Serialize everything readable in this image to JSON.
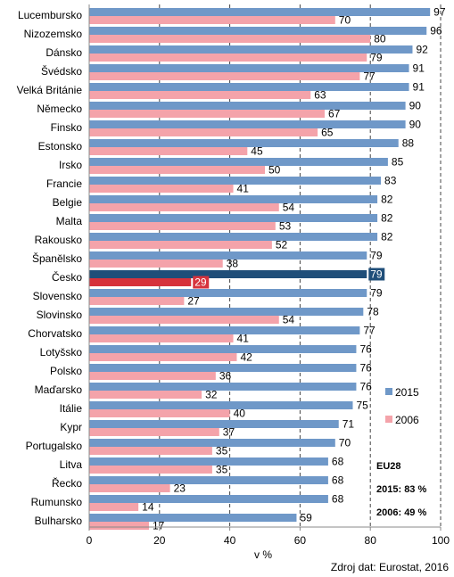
{
  "chart_data": {
    "type": "bar",
    "orientation": "horizontal",
    "categories": [
      "Lucembursko",
      "Nizozemsko",
      "Dánsko",
      "Švédsko",
      "Velká Británie",
      "Německo",
      "Finsko",
      "Estonsko",
      "Irsko",
      "Francie",
      "Belgie",
      "Malta",
      "Rakousko",
      "Španělsko",
      "Česko",
      "Slovensko",
      "Slovinsko",
      "Chorvatsko",
      "Lotyšsko",
      "Polsko",
      "Maďarsko",
      "Itálie",
      "Kypr",
      "Portugalsko",
      "Litva",
      "Řecko",
      "Rumunsko",
      "Bulharsko"
    ],
    "series": [
      {
        "name": "2015",
        "values": [
          97,
          96,
          92,
          91,
          91,
          90,
          90,
          88,
          85,
          83,
          82,
          82,
          82,
          79,
          79,
          79,
          78,
          77,
          76,
          76,
          76,
          75,
          71,
          70,
          68,
          68,
          68,
          59
        ],
        "color": "#6f98c8",
        "highlight_color": "#1f4e79"
      },
      {
        "name": "2006",
        "values": [
          70,
          80,
          79,
          77,
          63,
          67,
          65,
          45,
          50,
          41,
          54,
          53,
          52,
          38,
          29,
          27,
          54,
          41,
          42,
          36,
          32,
          40,
          37,
          35,
          35,
          23,
          14,
          17
        ],
        "color": "#f4a3aa",
        "highlight_color": "#d6323c"
      }
    ],
    "highlight_category": "Česko",
    "xlabel": "v %",
    "xlim": [
      0,
      100
    ],
    "xticks": [
      0,
      20,
      40,
      60,
      80,
      100
    ],
    "grid": "vertical dashed",
    "legend_position": "right",
    "annotation": {
      "title": "EU28",
      "line1": "2015: 83 %",
      "line2": "2006: 49 %"
    }
  },
  "source": "Zdroj dat: Eurostat, 2016"
}
